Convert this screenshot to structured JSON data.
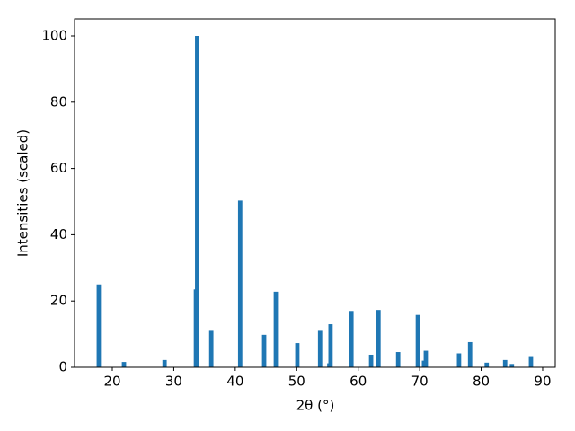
{
  "chart_data": {
    "type": "bar",
    "x_label": "2θ (°)",
    "y_label": "Intensities (scaled)",
    "x": [
      17.8,
      21.9,
      28.5,
      33.6,
      33.8,
      36.1,
      40.8,
      44.7,
      46.6,
      50.1,
      53.8,
      55.3,
      55.5,
      58.9,
      62.1,
      63.3,
      66.5,
      69.7,
      70.7,
      71.0,
      76.4,
      78.2,
      80.9,
      83.9,
      85.0,
      88.1
    ],
    "values": [
      25,
      1.6,
      2.2,
      23.5,
      100,
      11,
      50.3,
      9.8,
      22.8,
      7.3,
      11,
      1.2,
      13,
      17,
      3.8,
      17.3,
      4.6,
      15.8,
      2,
      5,
      4.2,
      7.6,
      1.4,
      2.2,
      1.0,
      3.1
    ],
    "color": "#1f77b4",
    "xlim": [
      13.86,
      92.05
    ],
    "xticks": [
      20,
      30,
      40,
      50,
      60,
      70,
      80,
      90
    ],
    "ylim": [
      0,
      105.15
    ],
    "yticks": [
      0,
      20,
      40,
      60,
      80,
      100
    ]
  }
}
